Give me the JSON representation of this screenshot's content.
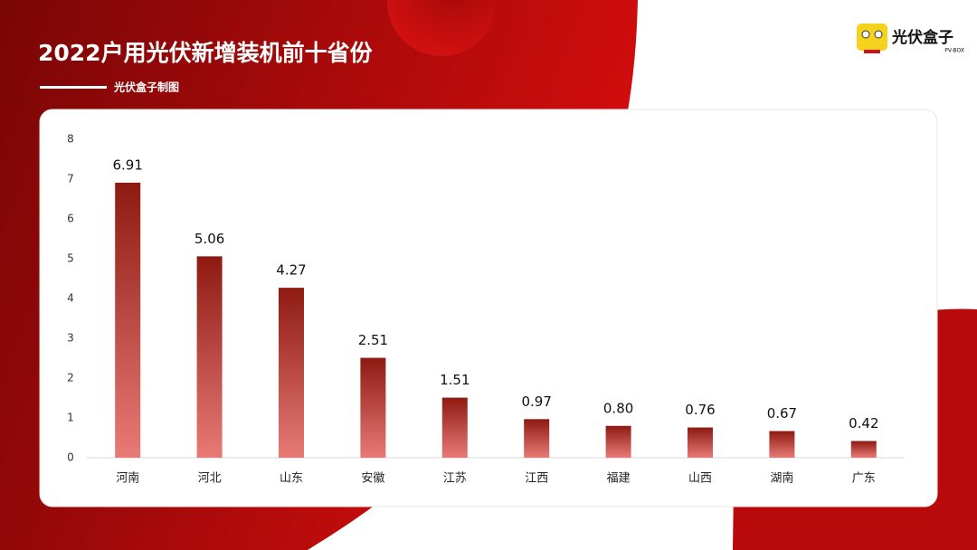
{
  "chart_data": {
    "type": "bar",
    "title": "2022户用光伏新增装机前十省份",
    "subtitle": "光伏盒子制图",
    "categories": [
      "河南",
      "河北",
      "山东",
      "安徽",
      "江苏",
      "江西",
      "福建",
      "山西",
      "湖南",
      "广东"
    ],
    "values": [
      6.91,
      5.06,
      4.27,
      2.51,
      1.51,
      0.97,
      0.8,
      0.76,
      0.67,
      0.42
    ],
    "value_labels": [
      "6.91",
      "5.06",
      "4.27",
      "2.51",
      "1.51",
      "0.97",
      "0.80",
      "0.76",
      "0.67",
      "0.42"
    ],
    "color": "#8e1a12",
    "ylim": [
      0,
      8
    ],
    "yticks": [
      0,
      1,
      2,
      3,
      4,
      5,
      6,
      7,
      8
    ],
    "grid": false
  },
  "logo": {
    "name": "光伏盒子",
    "tagline": "PV-BOX"
  }
}
